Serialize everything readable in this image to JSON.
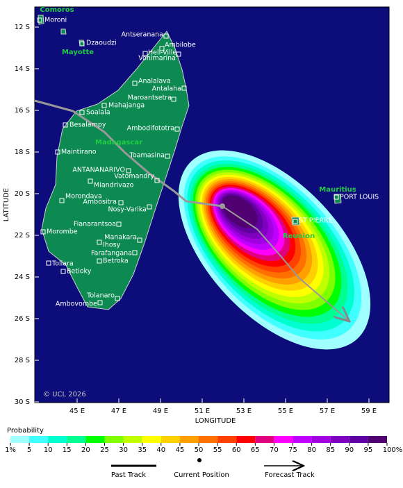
{
  "map": {
    "y_label": "LATITUDE",
    "x_label": "LONGITUDE",
    "copyright": "© UCL 2026",
    "lat_ticks": [
      "12 S",
      "14 S",
      "16 S",
      "18 S",
      "20 S",
      "22 S",
      "24 S",
      "26 S",
      "28 S",
      "30 S"
    ],
    "lon_ticks": [
      "45 E",
      "47 E",
      "49 E",
      "51 E",
      "53 E",
      "55 E",
      "57 E",
      "59 E"
    ],
    "regions": [
      "Comoros",
      "Mayotte",
      "Madagascar",
      "Mauritius",
      "Reunion"
    ],
    "cities": [
      "Moroni",
      "Dzaoudzi",
      "Antseranana",
      "Ambilobe",
      "Hell-Ville",
      "Vohimarina",
      "Analalava",
      "Antalaha",
      "Maroantsetra",
      "Mahajanga",
      "Soalala",
      "Besalampy",
      "Ambodifototra",
      "Maintirano",
      "Toamasina",
      "ANTANANARIVO",
      "Vatomandry",
      "Miandrivazo",
      "Morondava",
      "Ambositra",
      "Nosy-Varika",
      "Fianarantsoa",
      "Morombe",
      "Manakara",
      "Ihosy",
      "Farafangana",
      "Toliara",
      "Betroka",
      "Betioky",
      "Tolanaro",
      "Ambovombe",
      "PORT LOUIS",
      "ST PIERRE"
    ]
  },
  "legend": {
    "title": "Probability",
    "scale": [
      "1%",
      "5",
      "10",
      "15",
      "20",
      "25",
      "30",
      "35",
      "40",
      "45",
      "50",
      "55",
      "60",
      "65",
      "70",
      "75",
      "80",
      "85",
      "90",
      "95",
      "100%"
    ],
    "past": "Past Track",
    "current": "Current Position",
    "forecast": "Forecast Track"
  }
}
